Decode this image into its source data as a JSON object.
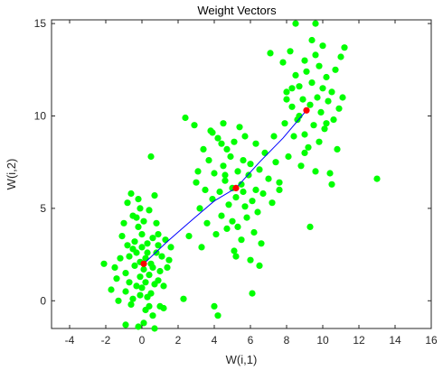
{
  "chart_data": {
    "type": "scatter",
    "title": "Weight Vectors",
    "xlabel": "W(i,1)",
    "ylabel": "W(i,2)",
    "xlim": [
      -5,
      16
    ],
    "ylim": [
      -1.5,
      15.2
    ],
    "x_ticks": [
      -4,
      -2,
      0,
      2,
      4,
      6,
      8,
      10,
      12,
      14,
      16
    ],
    "x_tick_labels": [
      "-4",
      "-2",
      "0",
      "2",
      "4",
      "6",
      "8",
      "10",
      "12",
      "14",
      "16"
    ],
    "y_ticks": [
      0,
      5,
      10,
      15
    ],
    "y_tick_labels": [
      "0",
      "5",
      "10",
      "15"
    ],
    "grid": false,
    "legend": "none",
    "series": [
      {
        "kind": "points",
        "color": "#00ff00",
        "points": [
          [
            -2.1,
            2.0
          ],
          [
            -1.7,
            0.6
          ],
          [
            -1.4,
            1.2
          ],
          [
            -1.3,
            0.0
          ],
          [
            -1.2,
            2.3
          ],
          [
            -1.1,
            3.5
          ],
          [
            -1.0,
            4.2
          ],
          [
            -0.9,
            1.5
          ],
          [
            -0.9,
            0.5
          ],
          [
            -0.8,
            3.0
          ],
          [
            -0.7,
            2.4
          ],
          [
            -0.7,
            1.0
          ],
          [
            -0.6,
            5.8
          ],
          [
            -0.6,
            -0.2
          ],
          [
            -0.5,
            2.8
          ],
          [
            -0.5,
            4.6
          ],
          [
            -0.4,
            1.9
          ],
          [
            -0.4,
            3.2
          ],
          [
            -0.3,
            0.8
          ],
          [
            -0.3,
            2.6
          ],
          [
            -0.2,
            5.5
          ],
          [
            -0.2,
            4.0
          ],
          [
            -0.2,
            -1.4
          ],
          [
            -0.1,
            2.1
          ],
          [
            -0.1,
            1.3
          ],
          [
            -0.1,
            0.3
          ],
          [
            0.0,
            3.6
          ],
          [
            0.0,
            2.9
          ],
          [
            0.0,
            0.7
          ],
          [
            0.1,
            -1.2
          ],
          [
            0.1,
            1.7
          ],
          [
            0.1,
            4.3
          ],
          [
            0.2,
            2.3
          ],
          [
            0.2,
            -0.5
          ],
          [
            0.2,
            1.0
          ],
          [
            0.3,
            3.1
          ],
          [
            0.3,
            0.2
          ],
          [
            0.3,
            2.6
          ],
          [
            0.4,
            4.9
          ],
          [
            0.4,
            1.4
          ],
          [
            0.5,
            7.8
          ],
          [
            0.5,
            0.4
          ],
          [
            0.5,
            2.0
          ],
          [
            0.6,
            3.4
          ],
          [
            0.6,
            -0.8
          ],
          [
            0.6,
            1.8
          ],
          [
            0.7,
            5.7
          ],
          [
            0.7,
            0.9
          ],
          [
            0.7,
            -1.5
          ],
          [
            0.8,
            2.6
          ],
          [
            0.8,
            4.2
          ],
          [
            0.9,
            1.1
          ],
          [
            0.9,
            3.0
          ],
          [
            1.0,
            -0.3
          ],
          [
            1.0,
            1.6
          ],
          [
            1.1,
            2.4
          ],
          [
            1.2,
            0.8
          ],
          [
            1.3,
            3.3
          ],
          [
            1.4,
            1.8
          ],
          [
            1.6,
            2.9
          ],
          [
            -0.9,
            -1.3
          ],
          [
            -0.5,
            0.1
          ],
          [
            0.4,
            -0.3
          ],
          [
            -1.5,
            1.8
          ],
          [
            1.2,
            -0.4
          ],
          [
            -0.3,
            4.5
          ],
          [
            0.9,
            3.6
          ],
          [
            -0.8,
            5.3
          ],
          [
            -0.1,
            5.0
          ],
          [
            1.5,
            2.2
          ],
          [
            2.3,
            0.1
          ],
          [
            2.4,
            9.9
          ],
          [
            2.6,
            3.5
          ],
          [
            2.9,
            9.5
          ],
          [
            3.0,
            6.4
          ],
          [
            3.1,
            7.0
          ],
          [
            3.2,
            5.0
          ],
          [
            3.3,
            2.9
          ],
          [
            3.4,
            8.2
          ],
          [
            3.5,
            6.0
          ],
          [
            3.6,
            4.2
          ],
          [
            3.7,
            7.6
          ],
          [
            3.8,
            9.2
          ],
          [
            3.9,
            5.5
          ],
          [
            4.0,
            -0.3
          ],
          [
            4.0,
            6.9
          ],
          [
            4.1,
            3.6
          ],
          [
            4.2,
            8.8
          ],
          [
            4.2,
            -0.8
          ],
          [
            4.3,
            5.9
          ],
          [
            4.4,
            4.6
          ],
          [
            4.5,
            7.3
          ],
          [
            4.5,
            9.6
          ],
          [
            4.6,
            6.5
          ],
          [
            4.7,
            3.9
          ],
          [
            4.7,
            8.2
          ],
          [
            4.8,
            5.2
          ],
          [
            4.9,
            7.8
          ],
          [
            5.0,
            4.3
          ],
          [
            5.0,
            6.1
          ],
          [
            5.1,
            8.6
          ],
          [
            5.1,
            2.7
          ],
          [
            5.2,
            5.6
          ],
          [
            5.3,
            7.0
          ],
          [
            5.3,
            4.0
          ],
          [
            5.4,
            9.4
          ],
          [
            5.5,
            6.3
          ],
          [
            5.5,
            3.3
          ],
          [
            5.6,
            7.6
          ],
          [
            5.7,
            5.1
          ],
          [
            5.7,
            8.9
          ],
          [
            5.8,
            4.5
          ],
          [
            5.9,
            6.8
          ],
          [
            6.0,
            2.2
          ],
          [
            6.0,
            7.4
          ],
          [
            6.1,
            5.4
          ],
          [
            6.2,
            3.7
          ],
          [
            6.3,
            8.5
          ],
          [
            6.3,
            6.0
          ],
          [
            6.4,
            4.8
          ],
          [
            6.5,
            7.1
          ],
          [
            6.6,
            3.1
          ],
          [
            6.7,
            5.8
          ],
          [
            6.8,
            8.0
          ],
          [
            7.0,
            6.6
          ],
          [
            7.2,
            5.3
          ],
          [
            7.4,
            7.5
          ],
          [
            7.6,
            6.0
          ],
          [
            4.6,
            6.8
          ],
          [
            5.6,
            5.9
          ],
          [
            6.1,
            0.4
          ],
          [
            5.2,
            2.4
          ],
          [
            6.5,
            1.9
          ],
          [
            4.4,
            8.5
          ],
          [
            3.9,
            9.1
          ],
          [
            7.1,
            13.4
          ],
          [
            7.6,
            6.4
          ],
          [
            7.8,
            12.9
          ],
          [
            7.9,
            9.6
          ],
          [
            8.0,
            11.3
          ],
          [
            8.1,
            7.8
          ],
          [
            8.2,
            13.5
          ],
          [
            8.3,
            10.5
          ],
          [
            8.4,
            8.9
          ],
          [
            8.5,
            12.2
          ],
          [
            8.5,
            15.0
          ],
          [
            8.6,
            9.8
          ],
          [
            8.7,
            11.6
          ],
          [
            8.8,
            7.3
          ],
          [
            8.9,
            10.9
          ],
          [
            9.0,
            13.0
          ],
          [
            9.0,
            9.0
          ],
          [
            9.1,
            12.4
          ],
          [
            9.2,
            8.3
          ],
          [
            9.3,
            10.6
          ],
          [
            9.4,
            14.1
          ],
          [
            9.4,
            11.8
          ],
          [
            9.5,
            9.5
          ],
          [
            9.6,
            13.3
          ],
          [
            9.6,
            7.0
          ],
          [
            9.7,
            11.0
          ],
          [
            9.8,
            12.7
          ],
          [
            9.8,
            8.6
          ],
          [
            9.9,
            10.2
          ],
          [
            10.0,
            13.8
          ],
          [
            10.0,
            11.5
          ],
          [
            10.1,
            9.3
          ],
          [
            10.2,
            12.1
          ],
          [
            10.3,
            10.8
          ],
          [
            10.4,
            6.9
          ],
          [
            10.5,
            11.3
          ],
          [
            10.6,
            9.8
          ],
          [
            10.7,
            12.5
          ],
          [
            10.8,
            8.2
          ],
          [
            10.9,
            10.4
          ],
          [
            11.0,
            13.2
          ],
          [
            11.1,
            11.0
          ],
          [
            11.2,
            13.7
          ],
          [
            8.7,
            10.0
          ],
          [
            9.3,
            4.0
          ],
          [
            9.6,
            15.0
          ],
          [
            13.0,
            6.6
          ],
          [
            8.3,
            11.5
          ],
          [
            10.5,
            6.3
          ],
          [
            7.3,
            8.9
          ],
          [
            8.0,
            10.9
          ],
          [
            9.0,
            8.0
          ],
          [
            10.2,
            9.6
          ]
        ]
      },
      {
        "kind": "line",
        "color": "#0000ff",
        "points": [
          [
            0.1,
            2.0
          ],
          [
            1.4,
            3.2
          ],
          [
            2.8,
            4.4
          ],
          [
            4.0,
            5.4
          ],
          [
            5.2,
            6.1
          ],
          [
            6.5,
            7.5
          ],
          [
            7.8,
            8.8
          ],
          [
            9.1,
            10.3
          ]
        ]
      },
      {
        "kind": "points",
        "color": "#ff0000",
        "points": [
          [
            0.1,
            2.0
          ],
          [
            5.2,
            6.1
          ],
          [
            9.1,
            10.3
          ]
        ]
      }
    ]
  }
}
